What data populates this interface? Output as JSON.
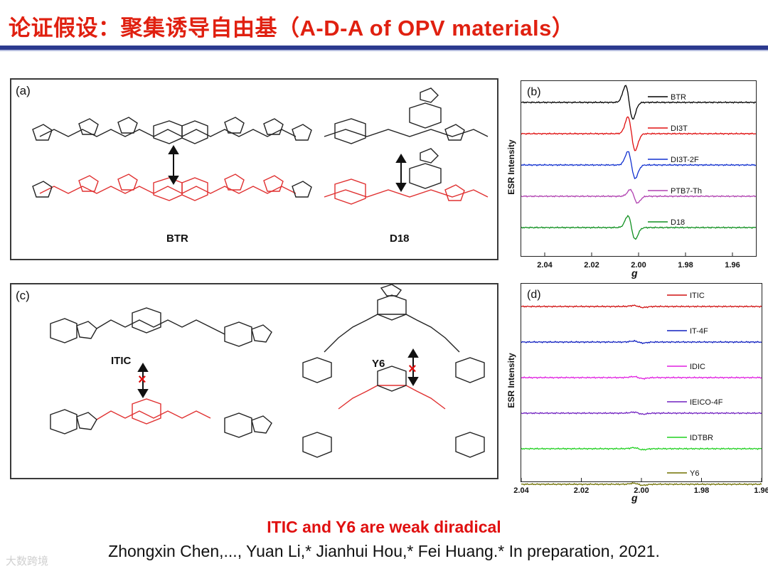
{
  "slide": {
    "title": "论证假设：聚集诱导自由基（A-D-A of OPV materials）",
    "conclusion": "ITIC and Y6 are weak diradical",
    "citation": "Zhongxin Chen,..., Yuan Li,* Jianhui Hou,* Fei Huang.* In preparation, 2021.",
    "watermark": "大数跨境"
  },
  "panel_a": {
    "label": "(a)",
    "names": [
      "BTR",
      "D18"
    ]
  },
  "panel_c": {
    "label": "(c)",
    "names": [
      "ITIC",
      "Y6"
    ]
  },
  "colors": {
    "title": "#e02010",
    "rule": "#2c3a8f",
    "radical": "#e03030",
    "BTR": "#000000",
    "DI3T": "#e01010",
    "DI3T-2F": "#1030d0",
    "PTB7-Th": "#b040b0",
    "D18": "#109020",
    "ITIC": "#d01010",
    "IT-4F": "#1020c0",
    "IDIC": "#e020e0",
    "IEICO-4F": "#7020c0",
    "IDTBR": "#20d020",
    "Y6": "#707000"
  },
  "chart_data": [
    {
      "type": "line",
      "panel": "(b)",
      "xlabel": "g",
      "ylabel": "ESR Intensity",
      "xlim": [
        2.05,
        1.95
      ],
      "xticks": [
        2.04,
        2.02,
        2.0,
        1.98,
        1.96
      ],
      "xtick_labels": [
        "2.04",
        "2.02",
        "2.00",
        "1.98",
        "1.96"
      ],
      "series": [
        {
          "name": "BTR",
          "g_center": 2.004,
          "amplitude": 1.0
        },
        {
          "name": "DI3T",
          "g_center": 2.003,
          "amplitude": 1.0
        },
        {
          "name": "DI3T-2F",
          "g_center": 2.003,
          "amplitude": 0.8
        },
        {
          "name": "PTB7-Th",
          "g_center": 2.002,
          "amplitude": 0.4
        },
        {
          "name": "D18",
          "g_center": 2.003,
          "amplitude": 0.7
        }
      ]
    },
    {
      "type": "line",
      "panel": "(d)",
      "xlabel": "g",
      "ylabel": "ESR Intensity",
      "xlim": [
        2.04,
        1.96
      ],
      "xticks": [
        2.04,
        2.02,
        2.0,
        1.98,
        1.96
      ],
      "xtick_labels": [
        "2.04",
        "2.02",
        "2.00",
        "1.98",
        "1.96"
      ],
      "series": [
        {
          "name": "ITIC",
          "g_center": 2.001,
          "amplitude": 0.06
        },
        {
          "name": "IT-4F",
          "g_center": 2.001,
          "amplitude": 0.06
        },
        {
          "name": "IDIC",
          "g_center": 2.001,
          "amplitude": 0.06
        },
        {
          "name": "IEICO-4F",
          "g_center": 2.001,
          "amplitude": 0.06
        },
        {
          "name": "IDTBR",
          "g_center": 2.001,
          "amplitude": 0.06
        },
        {
          "name": "Y6",
          "g_center": 2.001,
          "amplitude": 0.06
        }
      ]
    }
  ]
}
